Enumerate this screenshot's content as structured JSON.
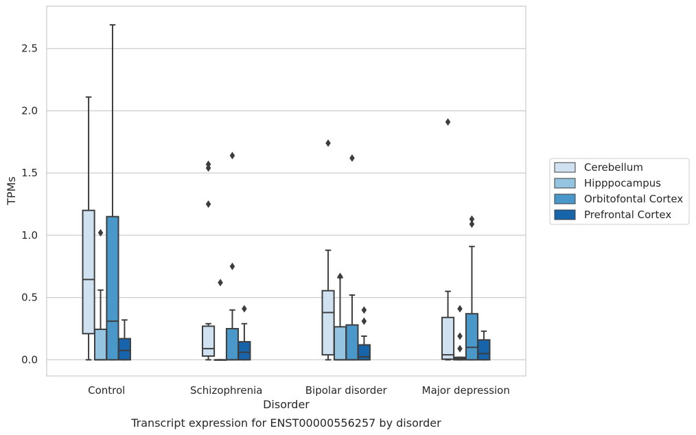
{
  "chart_data": {
    "type": "box",
    "title": "",
    "caption": "Transcript expression for ENST00000556257 by disorder",
    "xlabel": "Disorder",
    "ylabel": "TPMs",
    "ylim": [
      -0.13,
      2.84
    ],
    "yticks": [
      "0.0",
      "0.5",
      "1.0",
      "1.5",
      "2.0",
      "2.5"
    ],
    "grid": true,
    "legend_position": "right",
    "categories": [
      "Control",
      "Schizophrenia",
      "Bipolar disorder",
      "Major depression"
    ],
    "series": [
      {
        "name": "Cerebellum",
        "color": "#d0e1f2",
        "boxes": [
          {
            "whislo": 0.0,
            "q1": 0.21,
            "med": 0.645,
            "q3": 1.2,
            "whishi": 2.11,
            "fliers": []
          },
          {
            "whislo": 0.0,
            "q1": 0.03,
            "med": 0.09,
            "q3": 0.27,
            "whishi": 0.29,
            "fliers": [
              1.25,
              1.54,
              1.57
            ]
          },
          {
            "whislo": 0.0,
            "q1": 0.04,
            "med": 0.38,
            "q3": 0.555,
            "whishi": 0.88,
            "fliers": [
              1.74
            ]
          },
          {
            "whislo": 0.0,
            "q1": 0.005,
            "med": 0.04,
            "q3": 0.34,
            "whishi": 0.55,
            "fliers": [
              1.91
            ]
          }
        ]
      },
      {
        "name": "Hipppocampus",
        "color": "#94c4df",
        "boxes": [
          {
            "whislo": 0.0,
            "q1": 0.0,
            "med": 0.0,
            "q3": 0.245,
            "whishi": 0.56,
            "fliers": [
              1.02
            ]
          },
          {
            "whislo": 0.0,
            "q1": 0.0,
            "med": 0.0,
            "q3": 0.0,
            "whishi": 0.0,
            "fliers": [
              0.62
            ]
          },
          {
            "whislo": 0.0,
            "q1": 0.0,
            "med": 0.0,
            "q3": 0.265,
            "whishi": 0.66,
            "fliers": [
              0.67
            ]
          },
          {
            "whislo": 0.0,
            "q1": 0.0,
            "med": 0.01,
            "q3": 0.02,
            "whishi": 0.02,
            "fliers": [
              0.09,
              0.19,
              0.41
            ]
          }
        ]
      },
      {
        "name": "Orbitofontal Cortex",
        "color": "#4a98c9",
        "boxes": [
          {
            "whislo": 0.0,
            "q1": 0.0,
            "med": 0.31,
            "q3": 1.15,
            "whishi": 2.69,
            "fliers": []
          },
          {
            "whislo": 0.0,
            "q1": 0.0,
            "med": 0.0,
            "q3": 0.25,
            "whishi": 0.4,
            "fliers": [
              0.75,
              1.64
            ]
          },
          {
            "whislo": 0.0,
            "q1": 0.0,
            "med": 0.0,
            "q3": 0.28,
            "whishi": 0.52,
            "fliers": [
              1.62
            ]
          },
          {
            "whislo": 0.0,
            "q1": 0.0,
            "med": 0.1,
            "q3": 0.37,
            "whishi": 0.91,
            "fliers": [
              1.09,
              1.13
            ]
          }
        ]
      },
      {
        "name": "Prefrontal Cortex",
        "color": "#1764ab",
        "boxes": [
          {
            "whislo": 0.0,
            "q1": 0.0,
            "med": 0.075,
            "q3": 0.17,
            "whishi": 0.32,
            "fliers": []
          },
          {
            "whislo": 0.0,
            "q1": 0.0,
            "med": 0.06,
            "q3": 0.145,
            "whishi": 0.29,
            "fliers": [
              0.41
            ]
          },
          {
            "whislo": 0.0,
            "q1": 0.0,
            "med": 0.025,
            "q3": 0.12,
            "whishi": 0.19,
            "fliers": [
              0.31,
              0.4
            ]
          },
          {
            "whislo": 0.0,
            "q1": 0.0,
            "med": 0.05,
            "q3": 0.16,
            "whishi": 0.23,
            "fliers": []
          }
        ]
      }
    ]
  }
}
